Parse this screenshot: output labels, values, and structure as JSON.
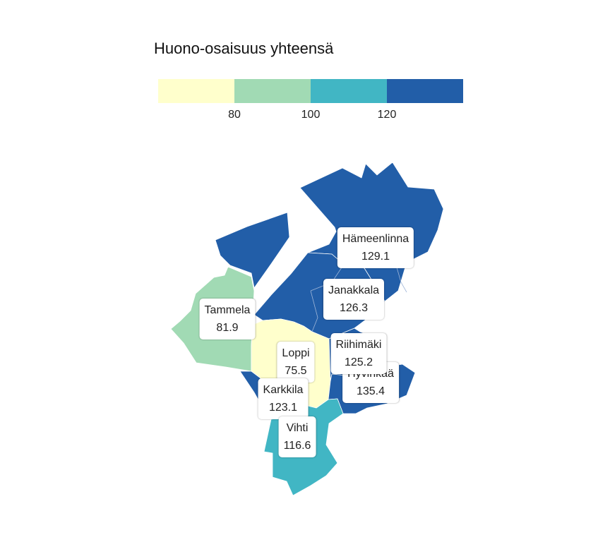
{
  "legend": {
    "title": "Huono-osaisuus yhteensä",
    "bins": [
      {
        "max": 80,
        "color": "#ffffcc"
      },
      {
        "min": 80,
        "max": 100,
        "color": "#a1dab4"
      },
      {
        "min": 100,
        "max": 120,
        "color": "#41b6c4"
      },
      {
        "min": 120,
        "color": "#225ea8"
      }
    ],
    "ticks": [
      "80",
      "100",
      "120"
    ]
  },
  "regions": [
    {
      "name": "Hämeenlinna",
      "value": "129.1"
    },
    {
      "name": "Janakkala",
      "value": "126.3"
    },
    {
      "name": "Tammela",
      "value": "81.9"
    },
    {
      "name": "Riihimäki",
      "value": "125.2"
    },
    {
      "name": "Loppi",
      "value": "75.5"
    },
    {
      "name": "Hyvinkää",
      "value": "135.4"
    },
    {
      "name": "Karkkila",
      "value": "123.1"
    },
    {
      "name": "Vihti",
      "value": "116.6"
    }
  ]
}
